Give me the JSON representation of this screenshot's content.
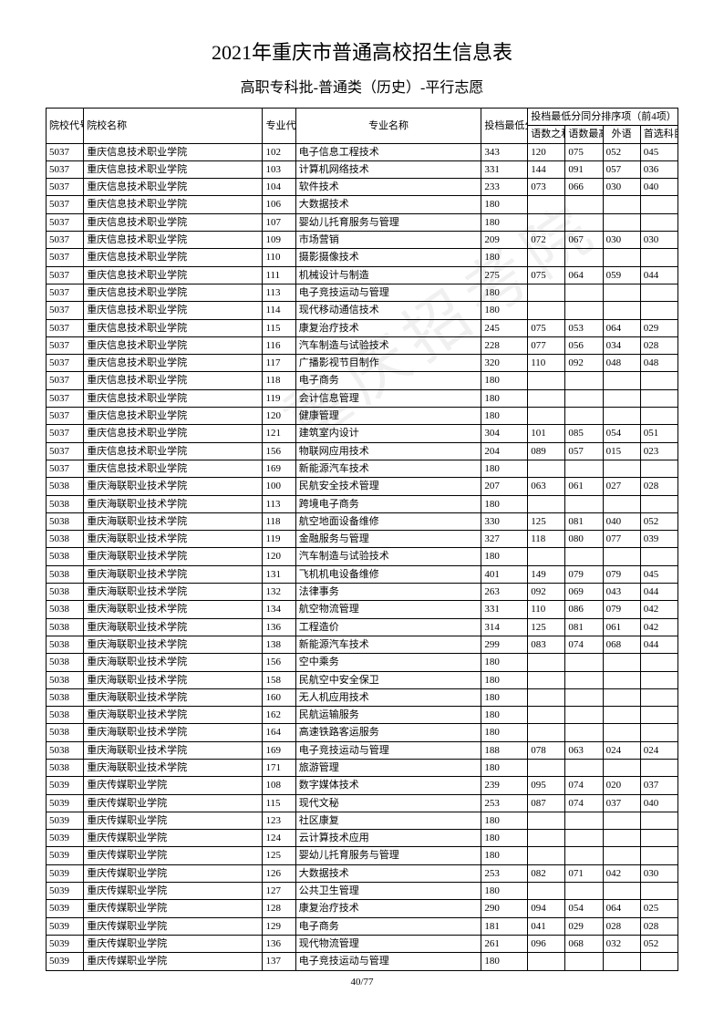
{
  "title": "2021年重庆市普通高校招生信息表",
  "subtitle": "高职专科批-普通类（历史）-平行志愿",
  "watermark": "重庆招考院",
  "pager": "40/77",
  "headers": {
    "school_code": "院校代号",
    "school_name": "院校名称",
    "major_code": "专业代号",
    "major_name": "专业名称",
    "min_score": "投档最低分",
    "tie_group": "投档最低分同分排序项（前4项）",
    "s1": "语数之和",
    "s2": "语数最高",
    "s3": "外语",
    "s4": "首选科目"
  },
  "rows": [
    {
      "c": "5037",
      "n": "重庆信息技术职业学院",
      "mc": "102",
      "mn": "电子信息工程技术",
      "sc": "343",
      "s1": "120",
      "s2": "075",
      "s3": "052",
      "s4": "045"
    },
    {
      "c": "5037",
      "n": "重庆信息技术职业学院",
      "mc": "103",
      "mn": "计算机网络技术",
      "sc": "331",
      "s1": "144",
      "s2": "091",
      "s3": "057",
      "s4": "036"
    },
    {
      "c": "5037",
      "n": "重庆信息技术职业学院",
      "mc": "104",
      "mn": "软件技术",
      "sc": "233",
      "s1": "073",
      "s2": "066",
      "s3": "030",
      "s4": "040"
    },
    {
      "c": "5037",
      "n": "重庆信息技术职业学院",
      "mc": "106",
      "mn": "大数据技术",
      "sc": "180",
      "s1": "",
      "s2": "",
      "s3": "",
      "s4": ""
    },
    {
      "c": "5037",
      "n": "重庆信息技术职业学院",
      "mc": "107",
      "mn": "婴幼儿托育服务与管理",
      "sc": "180",
      "s1": "",
      "s2": "",
      "s3": "",
      "s4": ""
    },
    {
      "c": "5037",
      "n": "重庆信息技术职业学院",
      "mc": "109",
      "mn": "市场营销",
      "sc": "209",
      "s1": "072",
      "s2": "067",
      "s3": "030",
      "s4": "030"
    },
    {
      "c": "5037",
      "n": "重庆信息技术职业学院",
      "mc": "110",
      "mn": "摄影摄像技术",
      "sc": "180",
      "s1": "",
      "s2": "",
      "s3": "",
      "s4": ""
    },
    {
      "c": "5037",
      "n": "重庆信息技术职业学院",
      "mc": "111",
      "mn": "机械设计与制造",
      "sc": "275",
      "s1": "075",
      "s2": "064",
      "s3": "059",
      "s4": "044"
    },
    {
      "c": "5037",
      "n": "重庆信息技术职业学院",
      "mc": "113",
      "mn": "电子竞技运动与管理",
      "sc": "180",
      "s1": "",
      "s2": "",
      "s3": "",
      "s4": ""
    },
    {
      "c": "5037",
      "n": "重庆信息技术职业学院",
      "mc": "114",
      "mn": "现代移动通信技术",
      "sc": "180",
      "s1": "",
      "s2": "",
      "s3": "",
      "s4": ""
    },
    {
      "c": "5037",
      "n": "重庆信息技术职业学院",
      "mc": "115",
      "mn": "康复治疗技术",
      "sc": "245",
      "s1": "075",
      "s2": "053",
      "s3": "064",
      "s4": "029"
    },
    {
      "c": "5037",
      "n": "重庆信息技术职业学院",
      "mc": "116",
      "mn": "汽车制造与试验技术",
      "sc": "228",
      "s1": "077",
      "s2": "056",
      "s3": "034",
      "s4": "028"
    },
    {
      "c": "5037",
      "n": "重庆信息技术职业学院",
      "mc": "117",
      "mn": "广播影视节目制作",
      "sc": "320",
      "s1": "110",
      "s2": "092",
      "s3": "048",
      "s4": "048"
    },
    {
      "c": "5037",
      "n": "重庆信息技术职业学院",
      "mc": "118",
      "mn": "电子商务",
      "sc": "180",
      "s1": "",
      "s2": "",
      "s3": "",
      "s4": ""
    },
    {
      "c": "5037",
      "n": "重庆信息技术职业学院",
      "mc": "119",
      "mn": "会计信息管理",
      "sc": "180",
      "s1": "",
      "s2": "",
      "s3": "",
      "s4": ""
    },
    {
      "c": "5037",
      "n": "重庆信息技术职业学院",
      "mc": "120",
      "mn": "健康管理",
      "sc": "180",
      "s1": "",
      "s2": "",
      "s3": "",
      "s4": ""
    },
    {
      "c": "5037",
      "n": "重庆信息技术职业学院",
      "mc": "121",
      "mn": "建筑室内设计",
      "sc": "304",
      "s1": "101",
      "s2": "085",
      "s3": "054",
      "s4": "051"
    },
    {
      "c": "5037",
      "n": "重庆信息技术职业学院",
      "mc": "156",
      "mn": "物联网应用技术",
      "sc": "204",
      "s1": "089",
      "s2": "057",
      "s3": "015",
      "s4": "023"
    },
    {
      "c": "5037",
      "n": "重庆信息技术职业学院",
      "mc": "169",
      "mn": "新能源汽车技术",
      "sc": "180",
      "s1": "",
      "s2": "",
      "s3": "",
      "s4": ""
    },
    {
      "c": "5038",
      "n": "重庆海联职业技术学院",
      "mc": "100",
      "mn": "民航安全技术管理",
      "sc": "207",
      "s1": "063",
      "s2": "061",
      "s3": "027",
      "s4": "028"
    },
    {
      "c": "5038",
      "n": "重庆海联职业技术学院",
      "mc": "113",
      "mn": "跨境电子商务",
      "sc": "180",
      "s1": "",
      "s2": "",
      "s3": "",
      "s4": ""
    },
    {
      "c": "5038",
      "n": "重庆海联职业技术学院",
      "mc": "118",
      "mn": "航空地面设备维修",
      "sc": "330",
      "s1": "125",
      "s2": "081",
      "s3": "040",
      "s4": "052"
    },
    {
      "c": "5038",
      "n": "重庆海联职业技术学院",
      "mc": "119",
      "mn": "金融服务与管理",
      "sc": "327",
      "s1": "118",
      "s2": "080",
      "s3": "077",
      "s4": "039"
    },
    {
      "c": "5038",
      "n": "重庆海联职业技术学院",
      "mc": "120",
      "mn": "汽车制造与试验技术",
      "sc": "180",
      "s1": "",
      "s2": "",
      "s3": "",
      "s4": ""
    },
    {
      "c": "5038",
      "n": "重庆海联职业技术学院",
      "mc": "131",
      "mn": "飞机机电设备维修",
      "sc": "401",
      "s1": "149",
      "s2": "079",
      "s3": "079",
      "s4": "045"
    },
    {
      "c": "5038",
      "n": "重庆海联职业技术学院",
      "mc": "132",
      "mn": "法律事务",
      "sc": "263",
      "s1": "092",
      "s2": "069",
      "s3": "043",
      "s4": "044"
    },
    {
      "c": "5038",
      "n": "重庆海联职业技术学院",
      "mc": "134",
      "mn": "航空物流管理",
      "sc": "331",
      "s1": "110",
      "s2": "086",
      "s3": "079",
      "s4": "042"
    },
    {
      "c": "5038",
      "n": "重庆海联职业技术学院",
      "mc": "136",
      "mn": "工程造价",
      "sc": "314",
      "s1": "125",
      "s2": "081",
      "s3": "061",
      "s4": "042"
    },
    {
      "c": "5038",
      "n": "重庆海联职业技术学院",
      "mc": "138",
      "mn": "新能源汽车技术",
      "sc": "299",
      "s1": "083",
      "s2": "074",
      "s3": "068",
      "s4": "044"
    },
    {
      "c": "5038",
      "n": "重庆海联职业技术学院",
      "mc": "156",
      "mn": "空中乘务",
      "sc": "180",
      "s1": "",
      "s2": "",
      "s3": "",
      "s4": ""
    },
    {
      "c": "5038",
      "n": "重庆海联职业技术学院",
      "mc": "158",
      "mn": "民航空中安全保卫",
      "sc": "180",
      "s1": "",
      "s2": "",
      "s3": "",
      "s4": ""
    },
    {
      "c": "5038",
      "n": "重庆海联职业技术学院",
      "mc": "160",
      "mn": "无人机应用技术",
      "sc": "180",
      "s1": "",
      "s2": "",
      "s3": "",
      "s4": ""
    },
    {
      "c": "5038",
      "n": "重庆海联职业技术学院",
      "mc": "162",
      "mn": "民航运输服务",
      "sc": "180",
      "s1": "",
      "s2": "",
      "s3": "",
      "s4": ""
    },
    {
      "c": "5038",
      "n": "重庆海联职业技术学院",
      "mc": "164",
      "mn": "高速铁路客运服务",
      "sc": "180",
      "s1": "",
      "s2": "",
      "s3": "",
      "s4": ""
    },
    {
      "c": "5038",
      "n": "重庆海联职业技术学院",
      "mc": "169",
      "mn": "电子竞技运动与管理",
      "sc": "188",
      "s1": "078",
      "s2": "063",
      "s3": "024",
      "s4": "024"
    },
    {
      "c": "5038",
      "n": "重庆海联职业技术学院",
      "mc": "171",
      "mn": "旅游管理",
      "sc": "180",
      "s1": "",
      "s2": "",
      "s3": "",
      "s4": ""
    },
    {
      "c": "5039",
      "n": "重庆传媒职业学院",
      "mc": "108",
      "mn": "数字媒体技术",
      "sc": "239",
      "s1": "095",
      "s2": "074",
      "s3": "020",
      "s4": "037"
    },
    {
      "c": "5039",
      "n": "重庆传媒职业学院",
      "mc": "115",
      "mn": "现代文秘",
      "sc": "253",
      "s1": "087",
      "s2": "074",
      "s3": "037",
      "s4": "040"
    },
    {
      "c": "5039",
      "n": "重庆传媒职业学院",
      "mc": "123",
      "mn": "社区康复",
      "sc": "180",
      "s1": "",
      "s2": "",
      "s3": "",
      "s4": ""
    },
    {
      "c": "5039",
      "n": "重庆传媒职业学院",
      "mc": "124",
      "mn": "云计算技术应用",
      "sc": "180",
      "s1": "",
      "s2": "",
      "s3": "",
      "s4": ""
    },
    {
      "c": "5039",
      "n": "重庆传媒职业学院",
      "mc": "125",
      "mn": "婴幼儿托育服务与管理",
      "sc": "180",
      "s1": "",
      "s2": "",
      "s3": "",
      "s4": ""
    },
    {
      "c": "5039",
      "n": "重庆传媒职业学院",
      "mc": "126",
      "mn": "大数据技术",
      "sc": "253",
      "s1": "082",
      "s2": "071",
      "s3": "042",
      "s4": "030"
    },
    {
      "c": "5039",
      "n": "重庆传媒职业学院",
      "mc": "127",
      "mn": "公共卫生管理",
      "sc": "180",
      "s1": "",
      "s2": "",
      "s3": "",
      "s4": ""
    },
    {
      "c": "5039",
      "n": "重庆传媒职业学院",
      "mc": "128",
      "mn": "康复治疗技术",
      "sc": "290",
      "s1": "094",
      "s2": "054",
      "s3": "064",
      "s4": "025"
    },
    {
      "c": "5039",
      "n": "重庆传媒职业学院",
      "mc": "129",
      "mn": "电子商务",
      "sc": "181",
      "s1": "041",
      "s2": "029",
      "s3": "028",
      "s4": "028"
    },
    {
      "c": "5039",
      "n": "重庆传媒职业学院",
      "mc": "136",
      "mn": "现代物流管理",
      "sc": "261",
      "s1": "096",
      "s2": "068",
      "s3": "032",
      "s4": "052"
    },
    {
      "c": "5039",
      "n": "重庆传媒职业学院",
      "mc": "137",
      "mn": "电子竞技运动与管理",
      "sc": "180",
      "s1": "",
      "s2": "",
      "s3": "",
      "s4": ""
    }
  ]
}
